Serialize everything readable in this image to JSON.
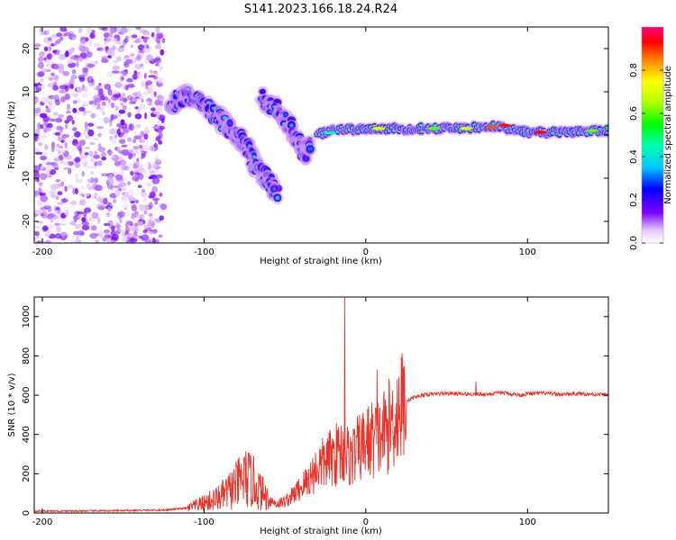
{
  "chart_data": [
    {
      "type": "heatmap",
      "title": "S141.2023.166.18.24.R24",
      "xlabel": "Height of straight line (km)",
      "ylabel": "Frequency (Hz)",
      "xlim": [
        -205,
        150
      ],
      "ylim": [
        -25,
        25
      ],
      "xticks": [
        -200,
        -100,
        0,
        100
      ],
      "yticks": [
        -20,
        -10,
        0,
        10,
        20
      ],
      "colorbar": {
        "label": "Normalized spectral amplitude",
        "range": [
          0,
          1
        ],
        "ticks": [
          0.0,
          0.2,
          0.4,
          0.6,
          0.8
        ]
      },
      "features": [
        {
          "name": "noise",
          "x_range": [
            -205,
            -125
          ],
          "freq_range": [
            -25,
            25
          ],
          "amplitude": 0.1
        },
        {
          "name": "branch-a",
          "points": [
            [
              -122,
              7
            ],
            [
              -110,
              9
            ],
            [
              -97,
              6
            ],
            [
              -88,
              3
            ],
            [
              -80,
              0
            ],
            [
              -70,
              -4
            ]
          ],
          "amplitude": 0.35
        },
        {
          "name": "branch-b",
          "points": [
            [
              -65,
              9
            ],
            [
              -52,
              5
            ],
            [
              -44,
              0
            ],
            [
              -38,
              -4
            ],
            [
              -34,
              -3
            ]
          ],
          "amplitude": 0.3
        },
        {
          "name": "branch-c",
          "points": [
            [
              -70,
              -6
            ],
            [
              -62,
              -10
            ],
            [
              -55,
              -13
            ]
          ],
          "amplitude": 0.25
        },
        {
          "name": "carrier",
          "points": [
            [
              -30,
              0
            ],
            [
              -20,
              1
            ],
            [
              0,
              1.5
            ],
            [
              50,
              1.5
            ],
            [
              80,
              2
            ],
            [
              100,
              0.5
            ],
            [
              150,
              1
            ]
          ],
          "amplitude": 0.85
        }
      ]
    },
    {
      "type": "line",
      "xlabel": "Height of straight line (km)",
      "ylabel": "SNR (10 * v/v)",
      "xlim": [
        -205,
        150
      ],
      "ylim": [
        0,
        1100
      ],
      "xticks": [
        -200,
        -100,
        0,
        100
      ],
      "yticks": [
        0,
        200,
        400,
        600,
        800,
        1000
      ],
      "color": "#e8332a",
      "x": [
        -205,
        -180,
        -150,
        -125,
        -110,
        -100,
        -90,
        -80,
        -75,
        -70,
        -65,
        -60,
        -55,
        -50,
        -45,
        -40,
        -35,
        -30,
        -25,
        -20,
        -15,
        -13,
        -10,
        -5,
        0,
        5,
        7,
        10,
        15,
        20,
        25,
        30,
        35,
        40,
        50,
        60,
        68,
        75,
        85,
        95,
        100,
        110,
        120,
        130,
        140,
        150
      ],
      "values": [
        10,
        10,
        12,
        15,
        25,
        50,
        80,
        140,
        180,
        160,
        110,
        70,
        45,
        60,
        90,
        130,
        175,
        230,
        260,
        290,
        320,
        1100,
        280,
        320,
        360,
        380,
        730,
        400,
        450,
        520,
        570,
        590,
        600,
        605,
        610,
        605,
        670,
        605,
        612,
        600,
        607,
        610,
        603,
        608,
        605,
        602
      ],
      "spikes": [
        {
          "x": -13,
          "y": 1100
        },
        {
          "x": 7,
          "y": 730
        },
        {
          "x": 68,
          "y": 670
        }
      ]
    }
  ]
}
